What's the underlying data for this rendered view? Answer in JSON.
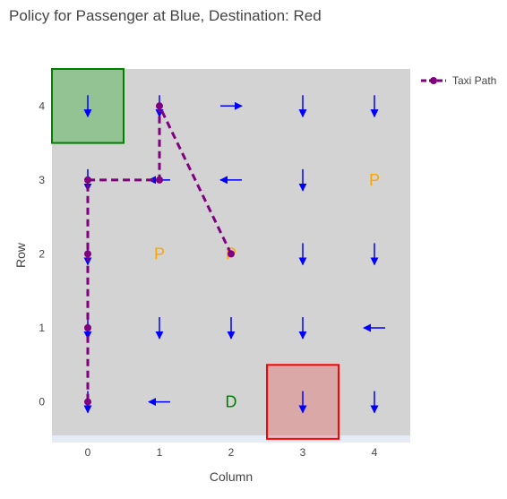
{
  "chart_data": {
    "type": "scatter",
    "title": "Policy for Passenger at Blue, Destination: Red",
    "xlabel": "Column",
    "ylabel": "Row",
    "xlim": [
      -0.5,
      4.5
    ],
    "ylim": [
      -0.55,
      4.5
    ],
    "xticks": [
      0,
      1,
      2,
      3,
      4
    ],
    "yticks": [
      0,
      1,
      2,
      3,
      4
    ],
    "grid": false,
    "legend_position": "top-right",
    "colors": {
      "plot_bg": "#d3d3d3",
      "paper_bg": "#ffffff",
      "below_band": "#e5ecf6",
      "arrow": "#0000ff",
      "path": "#800080",
      "label_p": "#ffa500",
      "label_d": "#008000"
    },
    "zones": [
      {
        "name": "start",
        "col": 0,
        "row": 4,
        "fill": "rgba(0,160,0,0.3)",
        "stroke": "#008000"
      },
      {
        "name": "destination",
        "col": 3,
        "row": 0,
        "fill": "rgba(255,0,0,0.2)",
        "stroke": "#ff0000"
      }
    ],
    "policy_arrows": [
      {
        "col": 0,
        "row": 4,
        "dir": "down"
      },
      {
        "col": 1,
        "row": 4,
        "dir": "down"
      },
      {
        "col": 2,
        "row": 4,
        "dir": "right"
      },
      {
        "col": 3,
        "row": 4,
        "dir": "down"
      },
      {
        "col": 4,
        "row": 4,
        "dir": "down"
      },
      {
        "col": 0,
        "row": 3,
        "dir": "down"
      },
      {
        "col": 1,
        "row": 3,
        "dir": "left"
      },
      {
        "col": 2,
        "row": 3,
        "dir": "left"
      },
      {
        "col": 3,
        "row": 3,
        "dir": "down"
      },
      {
        "col": 0,
        "row": 2,
        "dir": "down"
      },
      {
        "col": 3,
        "row": 2,
        "dir": "down"
      },
      {
        "col": 4,
        "row": 2,
        "dir": "down"
      },
      {
        "col": 0,
        "row": 1,
        "dir": "down"
      },
      {
        "col": 1,
        "row": 1,
        "dir": "down"
      },
      {
        "col": 2,
        "row": 1,
        "dir": "down"
      },
      {
        "col": 3,
        "row": 1,
        "dir": "down"
      },
      {
        "col": 4,
        "row": 1,
        "dir": "left"
      },
      {
        "col": 0,
        "row": 0,
        "dir": "down"
      },
      {
        "col": 1,
        "row": 0,
        "dir": "left"
      },
      {
        "col": 3,
        "row": 0,
        "dir": "down"
      },
      {
        "col": 4,
        "row": 0,
        "dir": "down"
      }
    ],
    "cell_labels": [
      {
        "col": 4,
        "row": 3,
        "text": "P",
        "color": "#ffa500"
      },
      {
        "col": 1,
        "row": 2,
        "text": "P",
        "color": "#ffa500"
      },
      {
        "col": 2,
        "row": 2,
        "text": "P",
        "color": "#ffa500"
      },
      {
        "col": 2,
        "row": 0,
        "text": "D",
        "color": "#008000"
      }
    ],
    "series": [
      {
        "name": "Taxi Path",
        "x": [
          2,
          1,
          1,
          0,
          0,
          0,
          0
        ],
        "y": [
          2,
          4,
          3,
          3,
          2,
          1,
          0
        ]
      }
    ]
  }
}
